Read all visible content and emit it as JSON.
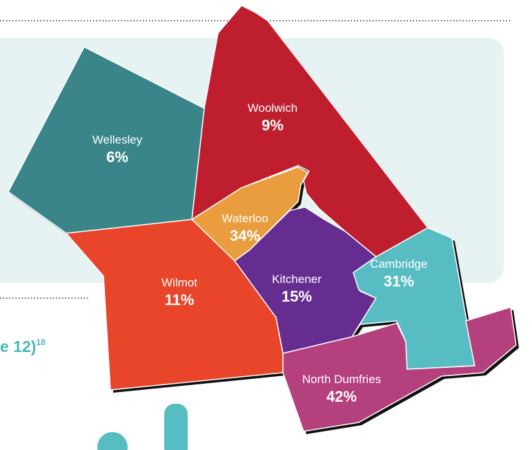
{
  "regions": [
    {
      "name": "Woolwich",
      "value": "9%"
    },
    {
      "name": "Wellesley",
      "value": "6%"
    },
    {
      "name": "Waterloo",
      "value": "34%"
    },
    {
      "name": "Kitchener",
      "value": "15%"
    },
    {
      "name": "Cambridge",
      "value": "31%"
    },
    {
      "name": "Wilmot",
      "value": "11%"
    },
    {
      "name": "North Dumfries",
      "value": "42%"
    }
  ],
  "caption": {
    "text": "e 12)",
    "footnote": "18"
  }
}
